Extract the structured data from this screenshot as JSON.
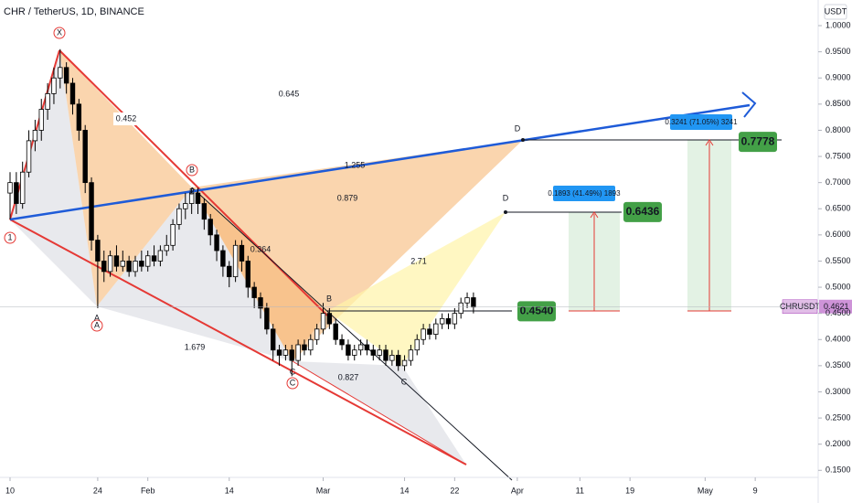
{
  "chart_data": {
    "type": "candlestick",
    "title": "CHR / TetherUS, 1D, BINANCE",
    "y_unit": "USDT",
    "symbol": "CHRUSDT",
    "up_color": "#ffffff",
    "down_color": "#000000",
    "open": [
      0.68,
      0.7,
      0.66,
      0.72,
      0.78,
      0.8,
      0.84,
      0.87,
      0.9,
      0.92,
      0.89,
      0.85,
      0.8,
      0.7,
      0.59,
      0.55,
      0.53,
      0.56,
      0.54,
      0.55,
      0.53,
      0.55,
      0.54,
      0.56,
      0.55,
      0.57,
      0.58,
      0.62,
      0.65,
      0.66,
      0.68,
      0.66,
      0.63,
      0.6,
      0.57,
      0.54,
      0.52,
      0.58,
      0.55,
      0.5,
      0.48,
      0.46,
      0.42,
      0.38,
      0.37,
      0.38,
      0.36,
      0.39,
      0.38,
      0.4,
      0.42,
      0.45,
      0.43,
      0.4,
      0.39,
      0.37,
      0.38,
      0.39,
      0.38,
      0.37,
      0.38,
      0.36,
      0.37,
      0.35,
      0.36,
      0.38,
      0.4,
      0.42,
      0.41,
      0.43,
      0.44,
      0.43,
      0.45,
      0.47,
      0.48
    ],
    "high": [
      0.72,
      0.72,
      0.74,
      0.8,
      0.82,
      0.86,
      0.89,
      0.92,
      0.955,
      0.93,
      0.9,
      0.86,
      0.81,
      0.71,
      0.6,
      0.57,
      0.57,
      0.58,
      0.57,
      0.56,
      0.56,
      0.57,
      0.57,
      0.58,
      0.58,
      0.6,
      0.63,
      0.66,
      0.68,
      0.69,
      0.69,
      0.67,
      0.64,
      0.61,
      0.58,
      0.55,
      0.59,
      0.59,
      0.56,
      0.51,
      0.49,
      0.47,
      0.43,
      0.39,
      0.39,
      0.39,
      0.4,
      0.4,
      0.41,
      0.43,
      0.47,
      0.46,
      0.44,
      0.41,
      0.4,
      0.39,
      0.4,
      0.4,
      0.39,
      0.39,
      0.39,
      0.38,
      0.38,
      0.37,
      0.39,
      0.41,
      0.43,
      0.43,
      0.44,
      0.45,
      0.45,
      0.46,
      0.48,
      0.49,
      0.49
    ],
    "low": [
      0.63,
      0.64,
      0.65,
      0.71,
      0.76,
      0.78,
      0.82,
      0.85,
      0.88,
      0.87,
      0.83,
      0.78,
      0.68,
      0.57,
      0.46,
      0.51,
      0.52,
      0.53,
      0.53,
      0.52,
      0.52,
      0.53,
      0.53,
      0.54,
      0.54,
      0.56,
      0.57,
      0.61,
      0.63,
      0.64,
      0.64,
      0.61,
      0.58,
      0.55,
      0.52,
      0.5,
      0.51,
      0.53,
      0.48,
      0.46,
      0.44,
      0.41,
      0.36,
      0.35,
      0.36,
      0.33,
      0.35,
      0.37,
      0.37,
      0.39,
      0.41,
      0.42,
      0.39,
      0.38,
      0.36,
      0.36,
      0.37,
      0.37,
      0.36,
      0.36,
      0.35,
      0.35,
      0.34,
      0.34,
      0.35,
      0.37,
      0.39,
      0.4,
      0.4,
      0.42,
      0.42,
      0.42,
      0.44,
      0.46,
      0.45
    ],
    "close": [
      0.7,
      0.66,
      0.72,
      0.78,
      0.8,
      0.84,
      0.87,
      0.9,
      0.92,
      0.89,
      0.85,
      0.8,
      0.7,
      0.59,
      0.55,
      0.53,
      0.56,
      0.54,
      0.55,
      0.53,
      0.55,
      0.54,
      0.56,
      0.55,
      0.57,
      0.58,
      0.62,
      0.65,
      0.66,
      0.68,
      0.66,
      0.63,
      0.6,
      0.57,
      0.54,
      0.52,
      0.58,
      0.55,
      0.5,
      0.48,
      0.46,
      0.42,
      0.38,
      0.37,
      0.38,
      0.36,
      0.39,
      0.38,
      0.4,
      0.42,
      0.45,
      0.43,
      0.4,
      0.39,
      0.37,
      0.38,
      0.39,
      0.38,
      0.37,
      0.38,
      0.36,
      0.37,
      0.35,
      0.36,
      0.38,
      0.4,
      0.42,
      0.41,
      0.43,
      0.44,
      0.43,
      0.45,
      0.47,
      0.48,
      0.4621
    ],
    "ylim": [
      0.14,
      1.049
    ],
    "yticks": [
      {
        "value": 0.15,
        "label": "0.1500"
      },
      {
        "value": 0.2,
        "label": "0.2000"
      },
      {
        "value": 0.25,
        "label": "0.2500"
      },
      {
        "value": 0.3,
        "label": "0.3000"
      },
      {
        "value": 0.35,
        "label": "0.3500"
      },
      {
        "value": 0.4,
        "label": "0.4000"
      },
      {
        "value": 0.45,
        "label": "0.4500"
      },
      {
        "value": 0.5,
        "label": "0.5000"
      },
      {
        "value": 0.55,
        "label": "0.5500"
      },
      {
        "value": 0.6,
        "label": "0.6000"
      },
      {
        "value": 0.65,
        "label": "0.6500"
      },
      {
        "value": 0.7,
        "label": "0.7000"
      },
      {
        "value": 0.75,
        "label": "0.7500"
      },
      {
        "value": 0.8,
        "label": "0.8000"
      },
      {
        "value": 0.85,
        "label": "0.8500"
      },
      {
        "value": 0.9,
        "label": "0.9000"
      },
      {
        "value": 0.95,
        "label": "0.9500"
      },
      {
        "value": 1.0,
        "label": "1.0000"
      }
    ],
    "xticks": [
      {
        "value": 0,
        "label": "10"
      },
      {
        "value": 14,
        "label": "24"
      },
      {
        "value": 22,
        "label": "Feb"
      },
      {
        "value": 35,
        "label": "14"
      },
      {
        "value": 50,
        "label": "Mar"
      },
      {
        "value": 63,
        "label": "14"
      },
      {
        "value": 71,
        "label": "22"
      },
      {
        "value": 81,
        "label": "Apr"
      },
      {
        "value": 91,
        "label": "11"
      },
      {
        "value": 99,
        "label": "19"
      },
      {
        "value": 111,
        "label": "May"
      },
      {
        "value": 119,
        "label": "9"
      }
    ],
    "last_price": {
      "value": 0.4621,
      "label": "0.4621"
    },
    "targets": [
      {
        "value": 0.7778,
        "label": "0.7778"
      },
      {
        "value": 0.6436,
        "label": "0.6436"
      },
      {
        "value": 0.454,
        "label": "0.4540"
      }
    ],
    "measures": [
      "0.3241 (71.05%) 3241",
      "0.1893 (41.49%) 1893"
    ],
    "pattern_labels": [
      "X",
      "A",
      "B",
      "C",
      "D",
      "1",
      "B",
      "C",
      "D",
      "A",
      "B",
      "C"
    ],
    "ratios": [
      "0.452",
      "0.645",
      "1.255",
      "0.879",
      "0.364",
      "2.71",
      "1.679",
      "0.827"
    ]
  }
}
